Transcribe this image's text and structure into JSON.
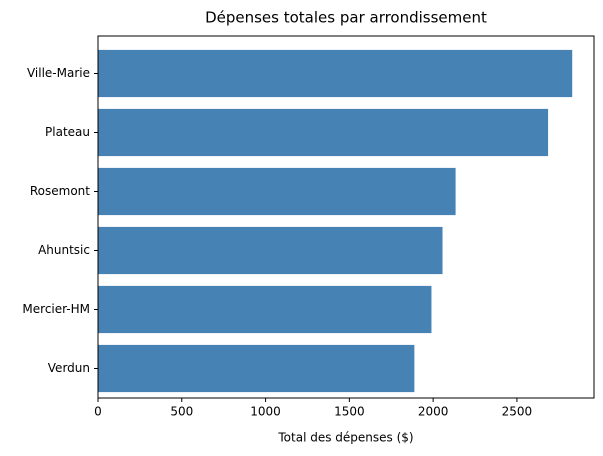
{
  "chart_data": {
    "type": "barh",
    "title": "Dépenses totales par arrondissement",
    "xlabel": "Total des dépenses ($)",
    "categories": [
      "Ville-Marie",
      "Plateau",
      "Rosemont",
      "Ahuntsic",
      "Mercier-HM",
      "Verdun"
    ],
    "values": [
      2830,
      2686,
      2134,
      2056,
      1990,
      1888
    ],
    "color": "#4682b4",
    "xlim": [
      0,
      2960
    ],
    "xticks": [
      0,
      500,
      1000,
      1500,
      2000,
      2500
    ]
  }
}
